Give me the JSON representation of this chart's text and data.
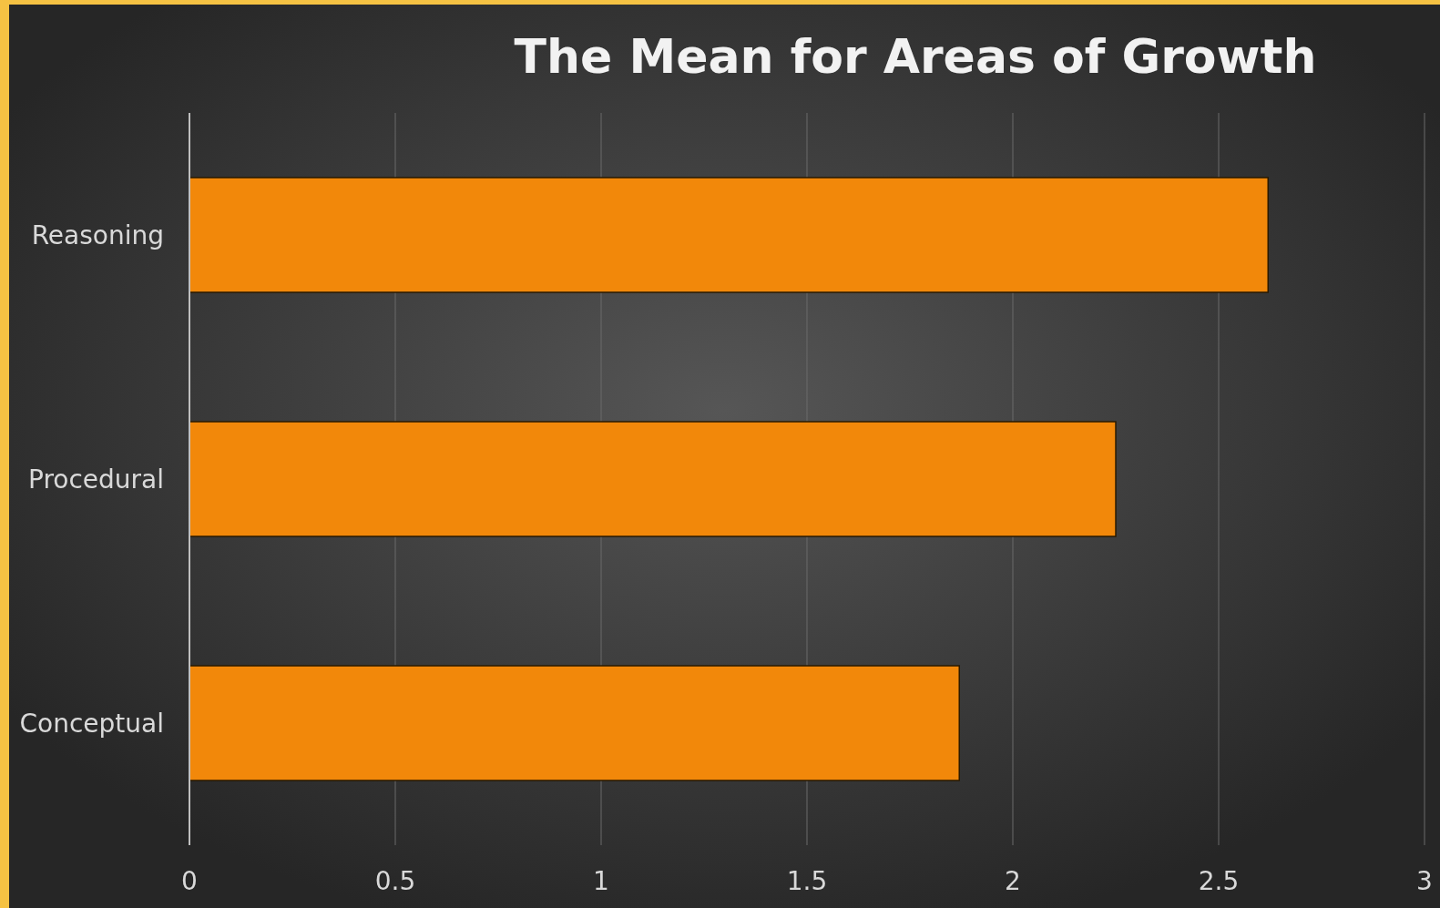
{
  "chart_data": {
    "type": "bar",
    "orientation": "horizontal",
    "title": "The Mean for Areas of Growth",
    "categories": [
      "Reasoning",
      "Procedural",
      "Conceptual"
    ],
    "values": [
      2.62,
      2.25,
      1.87
    ],
    "color": "#f2880a",
    "xlim": [
      0,
      3
    ],
    "xticks": [
      0,
      0.5,
      1,
      1.5,
      2,
      2.5,
      3
    ],
    "grid": "x"
  }
}
